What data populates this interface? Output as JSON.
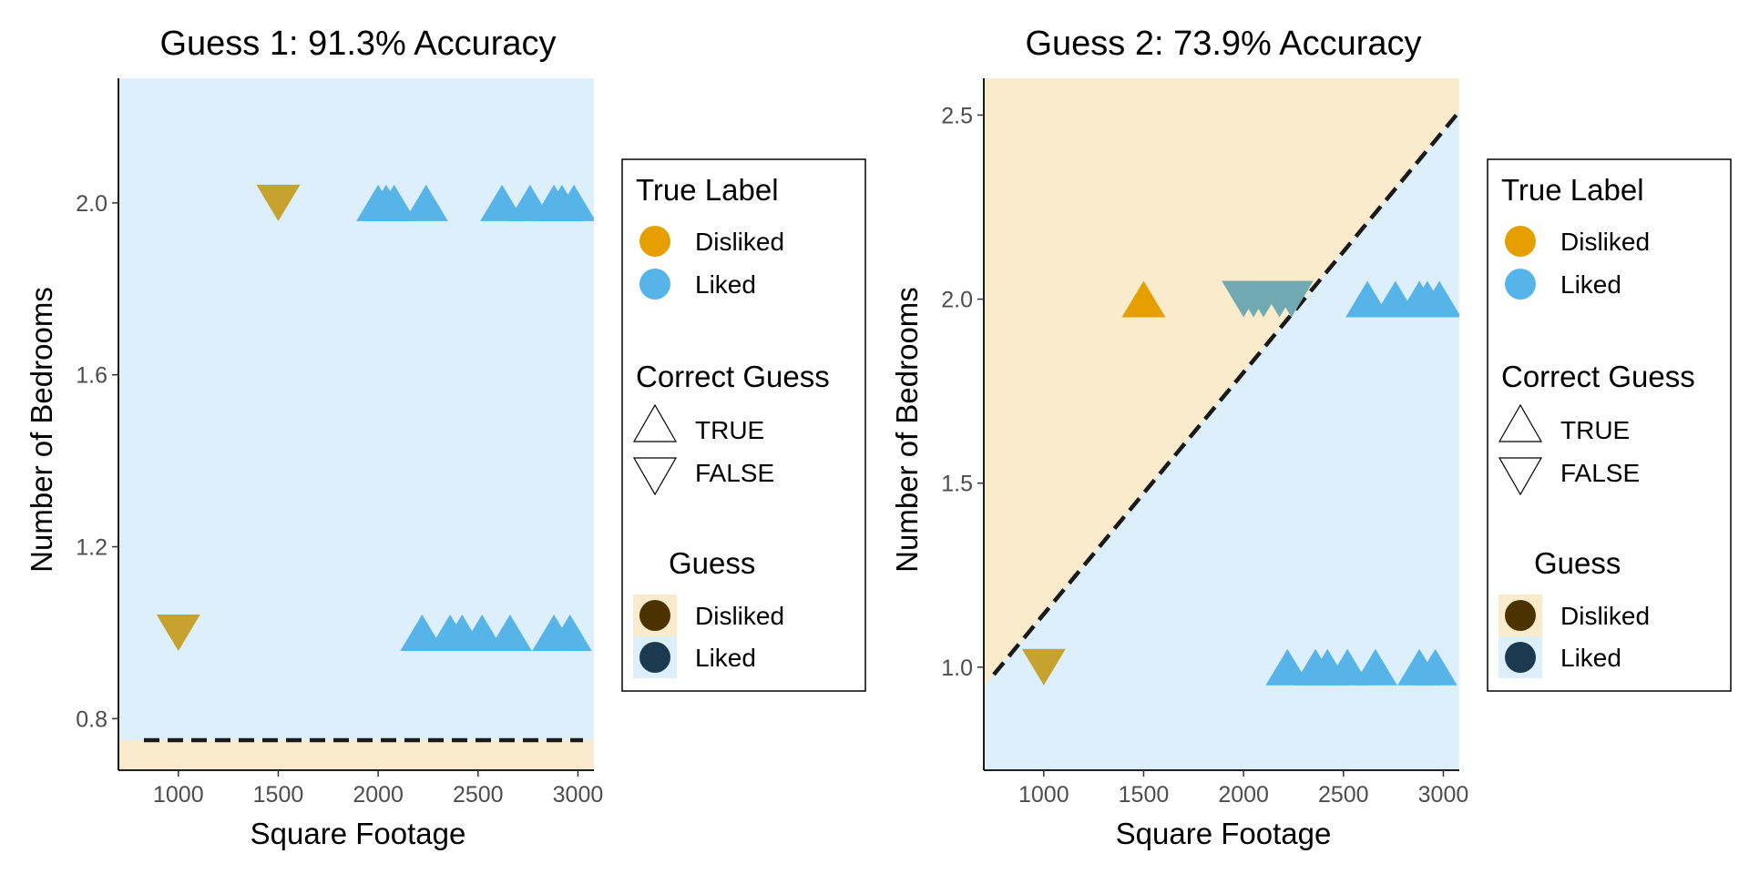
{
  "colors": {
    "disliked": "#E69F00",
    "liked": "#56B4E9",
    "disliked_region": "#FAEBCC",
    "liked_region": "#DDEFFB",
    "guess_disliked_key": "#4A3300",
    "guess_liked_key": "#1B3A50",
    "overlap_point": "#72AAB4",
    "wrong_disliked_point": "#C8A22E",
    "boundary": "#1a1a1a"
  },
  "legend": {
    "true_label": {
      "title": "True Label",
      "items": [
        {
          "label": "Disliked",
          "key": "disliked"
        },
        {
          "label": "Liked",
          "key": "liked"
        }
      ]
    },
    "correct_guess": {
      "title": "Correct Guess",
      "items": [
        {
          "label": "TRUE",
          "shape": "triangle-up"
        },
        {
          "label": "FALSE",
          "shape": "triangle-down"
        }
      ]
    },
    "guess": {
      "title": "Guess",
      "items": [
        {
          "label": "Disliked",
          "key": "disliked"
        },
        {
          "label": "Liked",
          "key": "liked"
        }
      ]
    }
  },
  "chart_data": [
    {
      "type": "scatter",
      "title": "Guess 1: 91.3% Accuracy",
      "xlabel": "Square Footage",
      "ylabel": "Number of Bedrooms",
      "xlim": [
        700,
        3080
      ],
      "ylim": [
        0.68,
        2.29
      ],
      "xticks": [
        1000,
        1500,
        2000,
        2500,
        3000
      ],
      "xtick_labels": [
        "1000",
        "1500",
        "2000",
        "2500",
        "3000"
      ],
      "yticks": [
        0.8,
        1.2,
        1.6,
        2.0
      ],
      "ytick_labels": [
        "0.8",
        "1.2",
        "1.6",
        "2.0"
      ],
      "grid": false,
      "boundary": {
        "type": "horizontal",
        "y": 0.75,
        "below": "disliked",
        "above": "liked"
      },
      "points": [
        {
          "x": 1000,
          "y": 1,
          "true_label": "disliked",
          "correct": false
        },
        {
          "x": 1500,
          "y": 2,
          "true_label": "disliked",
          "correct": false
        },
        {
          "x": 2000,
          "y": 2,
          "true_label": "liked",
          "correct": true
        },
        {
          "x": 2040,
          "y": 2,
          "true_label": "liked",
          "correct": true
        },
        {
          "x": 2080,
          "y": 2,
          "true_label": "liked",
          "correct": true
        },
        {
          "x": 2240,
          "y": 2,
          "true_label": "liked",
          "correct": true
        },
        {
          "x": 2620,
          "y": 2,
          "true_label": "liked",
          "correct": true
        },
        {
          "x": 2760,
          "y": 2,
          "true_label": "liked",
          "correct": true
        },
        {
          "x": 2880,
          "y": 2,
          "true_label": "liked",
          "correct": true
        },
        {
          "x": 2920,
          "y": 2,
          "true_label": "liked",
          "correct": true
        },
        {
          "x": 2980,
          "y": 2,
          "true_label": "liked",
          "correct": true
        },
        {
          "x": 2220,
          "y": 1,
          "true_label": "liked",
          "correct": true
        },
        {
          "x": 2360,
          "y": 1,
          "true_label": "liked",
          "correct": true
        },
        {
          "x": 2420,
          "y": 1,
          "true_label": "liked",
          "correct": true
        },
        {
          "x": 2520,
          "y": 1,
          "true_label": "liked",
          "correct": true
        },
        {
          "x": 2660,
          "y": 1,
          "true_label": "liked",
          "correct": true
        },
        {
          "x": 2880,
          "y": 1,
          "true_label": "liked",
          "correct": true
        },
        {
          "x": 2960,
          "y": 1,
          "true_label": "liked",
          "correct": true
        }
      ]
    },
    {
      "type": "scatter",
      "title": "Guess 2: 73.9% Accuracy",
      "xlabel": "Square Footage",
      "ylabel": "Number of Bedrooms",
      "xlim": [
        700,
        3080
      ],
      "ylim": [
        0.72,
        2.6
      ],
      "xticks": [
        1000,
        1500,
        2000,
        2500,
        3000
      ],
      "xtick_labels": [
        "1000",
        "1500",
        "2000",
        "2500",
        "3000"
      ],
      "yticks": [
        1.0,
        1.5,
        2.0,
        2.5
      ],
      "ytick_labels": [
        "1.0",
        "1.5",
        "2.0",
        "2.5"
      ],
      "grid": false,
      "boundary": {
        "type": "line",
        "from": [
          750,
          0.98
        ],
        "to": [
          3080,
          2.51
        ],
        "above": "disliked",
        "below": "liked"
      },
      "points": [
        {
          "x": 1000,
          "y": 1,
          "true_label": "disliked",
          "correct": false
        },
        {
          "x": 1500,
          "y": 2,
          "true_label": "disliked",
          "correct": true
        },
        {
          "x": 2000,
          "y": 2,
          "true_label": "liked",
          "correct": false
        },
        {
          "x": 2050,
          "y": 2,
          "true_label": "liked",
          "correct": false
        },
        {
          "x": 2100,
          "y": 2,
          "true_label": "liked",
          "correct": false
        },
        {
          "x": 2180,
          "y": 2,
          "true_label": "liked",
          "correct": false
        },
        {
          "x": 2240,
          "y": 2,
          "true_label": "liked",
          "correct": false
        },
        {
          "x": 2620,
          "y": 2,
          "true_label": "liked",
          "correct": true
        },
        {
          "x": 2760,
          "y": 2,
          "true_label": "liked",
          "correct": true
        },
        {
          "x": 2880,
          "y": 2,
          "true_label": "liked",
          "correct": true
        },
        {
          "x": 2920,
          "y": 2,
          "true_label": "liked",
          "correct": true
        },
        {
          "x": 2980,
          "y": 2,
          "true_label": "liked",
          "correct": true
        },
        {
          "x": 2220,
          "y": 1,
          "true_label": "liked",
          "correct": true
        },
        {
          "x": 2360,
          "y": 1,
          "true_label": "liked",
          "correct": true
        },
        {
          "x": 2420,
          "y": 1,
          "true_label": "liked",
          "correct": true
        },
        {
          "x": 2520,
          "y": 1,
          "true_label": "liked",
          "correct": true
        },
        {
          "x": 2660,
          "y": 1,
          "true_label": "liked",
          "correct": true
        },
        {
          "x": 2880,
          "y": 1,
          "true_label": "liked",
          "correct": true
        },
        {
          "x": 2960,
          "y": 1,
          "true_label": "liked",
          "correct": true
        }
      ]
    }
  ]
}
